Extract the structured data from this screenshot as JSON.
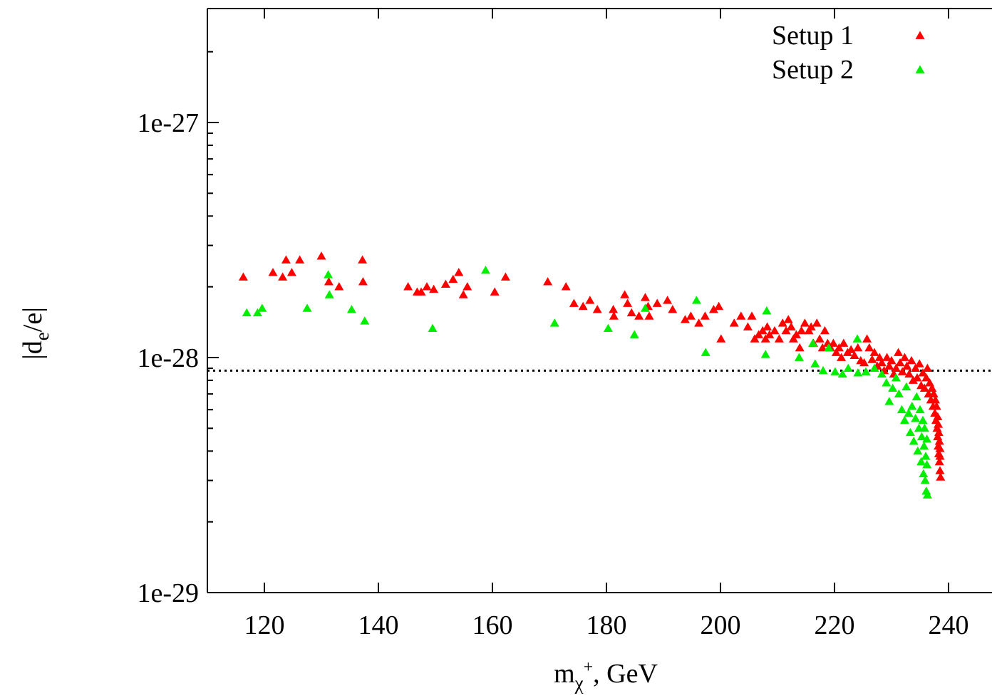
{
  "chart_data": {
    "type": "scatter",
    "title": "",
    "xlabel": {
      "main": "m",
      "sub": "χ",
      "sup": "+",
      "rest": ", GeV"
    },
    "ylabel": {
      "pre": "|d",
      "sub": "e",
      "post": "/e|"
    },
    "xlim": [
      110,
      240
    ],
    "ylim": [
      1e-29,
      2.8e-27
    ],
    "yscale": "log",
    "xticks": [
      120,
      140,
      160,
      180,
      200,
      220,
      240
    ],
    "xtick_labels": [
      "120",
      "140",
      "160",
      "180",
      "200",
      "220",
      "240"
    ],
    "yticks": [
      1e-29,
      1e-28,
      1e-27
    ],
    "ytick_labels": [
      "1e-29",
      "1e-28",
      "1e-27"
    ],
    "grid": false,
    "legend_position": "top-right",
    "reference_line": {
      "y": 8.8e-29,
      "style": "dotted"
    },
    "series": [
      {
        "name": "Setup 1",
        "color": "#ff0000",
        "marker": "triangle",
        "points": [
          [
            116.3,
            2.2e-28
          ],
          [
            121.5,
            2.3e-28
          ],
          [
            123.2,
            2.2e-28
          ],
          [
            123.8,
            2.6e-28
          ],
          [
            124.8,
            2.3e-28
          ],
          [
            126.2,
            2.6e-28
          ],
          [
            130.0,
            2.7e-28
          ],
          [
            131.3,
            2.1e-28
          ],
          [
            133.1,
            2e-28
          ],
          [
            137.2,
            2.6e-28
          ],
          [
            137.3,
            2.1e-28
          ],
          [
            145.2,
            2e-28
          ],
          [
            146.8,
            1.9e-28
          ],
          [
            147.5,
            1.9e-28
          ],
          [
            148.5,
            2e-28
          ],
          [
            149.7,
            1.95e-28
          ],
          [
            151.8,
            2.05e-28
          ],
          [
            153.1,
            2.15e-28
          ],
          [
            154.1,
            2.3e-28
          ],
          [
            154.9,
            1.85e-28
          ],
          [
            155.6,
            2e-28
          ],
          [
            160.4,
            1.9e-28
          ],
          [
            162.3,
            2.2e-28
          ],
          [
            169.7,
            2.1e-28
          ],
          [
            172.9,
            2e-28
          ],
          [
            174.3,
            1.7e-28
          ],
          [
            175.9,
            1.65e-28
          ],
          [
            177.1,
            1.75e-28
          ],
          [
            178.4,
            1.6e-28
          ],
          [
            181.2,
            1.6e-28
          ],
          [
            181.3,
            1.5e-28
          ],
          [
            183.2,
            1.85e-28
          ],
          [
            183.7,
            1.7e-28
          ],
          [
            184.4,
            1.55e-28
          ],
          [
            185.7,
            1.5e-28
          ],
          [
            186.8,
            1.8e-28
          ],
          [
            187.3,
            1.65e-28
          ],
          [
            187.5,
            1.5e-28
          ],
          [
            188.9,
            1.7e-28
          ],
          [
            190.7,
            1.75e-28
          ],
          [
            191.6,
            1.6e-28
          ],
          [
            193.8,
            1.45e-28
          ],
          [
            194.8,
            1.5e-28
          ],
          [
            196.2,
            1.4e-28
          ],
          [
            197.3,
            1.5e-28
          ],
          [
            198.8,
            1.6e-28
          ],
          [
            199.7,
            1.65e-28
          ],
          [
            200.1,
            1.2e-28
          ],
          [
            202.4,
            1.4e-28
          ],
          [
            203.6,
            1.5e-28
          ],
          [
            204.8,
            1.35e-28
          ],
          [
            205.5,
            1.5e-28
          ],
          [
            206.0,
            1.2e-28
          ],
          [
            206.7,
            1.25e-28
          ],
          [
            207.4,
            1.3e-28
          ],
          [
            207.9,
            1.2e-28
          ],
          [
            208.2,
            1.35e-28
          ],
          [
            208.6,
            1.25e-28
          ],
          [
            209.5,
            1.3e-28
          ],
          [
            210.3,
            1.2e-28
          ],
          [
            210.9,
            1.4e-28
          ],
          [
            211.5,
            1.3e-28
          ],
          [
            211.9,
            1.45e-28
          ],
          [
            212.4,
            1.35e-28
          ],
          [
            212.8,
            1.2e-28
          ],
          [
            213.3,
            1.25e-28
          ],
          [
            213.9,
            1.1e-28
          ],
          [
            214.2,
            1.3e-28
          ],
          [
            214.8,
            1.4e-28
          ],
          [
            215.5,
            1.3e-28
          ],
          [
            215.9,
            1.35e-28
          ],
          [
            216.3,
            1.15e-28
          ],
          [
            216.9,
            1.4e-28
          ],
          [
            217.4,
            1.2e-28
          ],
          [
            217.9,
            1.1e-28
          ],
          [
            218.3,
            1.3e-28
          ],
          [
            218.8,
            1.15e-28
          ],
          [
            219.3,
            1.1e-28
          ],
          [
            219.8,
            1.15e-28
          ],
          [
            220.3,
            1.05e-28
          ],
          [
            220.8,
            1.1e-28
          ],
          [
            221.2,
            1e-28
          ],
          [
            221.6,
            1.15e-28
          ],
          [
            222.3,
            1.05e-28
          ],
          [
            222.9,
            1.08e-28
          ],
          [
            223.5,
            1.02e-28
          ],
          [
            224.1,
            1.1e-28
          ],
          [
            224.6,
            9.7e-29
          ],
          [
            225.2,
            9.5e-29
          ],
          [
            225.7,
            1.2e-28
          ],
          [
            226.1,
            1.1e-28
          ],
          [
            226.6,
            9.8e-29
          ],
          [
            227.0,
            1.05e-28
          ],
          [
            227.5,
            9.2e-29
          ],
          [
            227.9,
            1e-28
          ],
          [
            228.3,
            9.5e-29
          ],
          [
            228.7,
            8.8e-29
          ],
          [
            229.2,
            1e-28
          ],
          [
            229.6,
            9.2e-29
          ],
          [
            230.0,
            9.7e-29
          ],
          [
            230.4,
            8.5e-29
          ],
          [
            230.8,
            9e-29
          ],
          [
            231.2,
            1.05e-28
          ],
          [
            231.5,
            9.5e-29
          ],
          [
            231.9,
            8.7e-29
          ],
          [
            232.3,
            1e-28
          ],
          [
            232.7,
            9.2e-29
          ],
          [
            233.1,
            8.5e-29
          ],
          [
            233.5,
            9.7e-29
          ],
          [
            233.8,
            8e-29
          ],
          [
            234.2,
            9e-29
          ],
          [
            234.5,
            8.2e-29
          ],
          [
            234.9,
            9.4e-29
          ],
          [
            235.2,
            7.6e-29
          ],
          [
            235.5,
            8.6e-29
          ],
          [
            235.8,
            7.4e-29
          ],
          [
            236.1,
            8.2e-29
          ],
          [
            236.3,
            9e-29
          ],
          [
            236.5,
            7e-29
          ],
          [
            236.7,
            7.8e-29
          ],
          [
            236.9,
            6.6e-29
          ],
          [
            237.1,
            7.4e-29
          ],
          [
            237.3,
            6.2e-29
          ],
          [
            237.4,
            7e-29
          ],
          [
            237.6,
            5.8e-29
          ],
          [
            237.7,
            6.6e-29
          ],
          [
            237.8,
            5.4e-29
          ],
          [
            237.9,
            6.2e-29
          ],
          [
            238.0,
            5e-29
          ],
          [
            238.1,
            5.6e-29
          ],
          [
            238.1,
            4.6e-29
          ],
          [
            238.2,
            5.2e-29
          ],
          [
            238.2,
            4.2e-29
          ],
          [
            238.3,
            4.8e-29
          ],
          [
            238.3,
            3.9e-29
          ],
          [
            238.4,
            4.4e-29
          ],
          [
            238.4,
            3.6e-29
          ],
          [
            238.5,
            4.1e-29
          ],
          [
            238.5,
            3.3e-29
          ],
          [
            238.5,
            3.8e-29
          ],
          [
            238.6,
            3.1e-29
          ]
        ]
      },
      {
        "name": "Setup 2",
        "color": "#00ee00",
        "marker": "triangle",
        "points": [
          [
            116.9,
            1.55e-28
          ],
          [
            118.8,
            1.55e-28
          ],
          [
            119.6,
            1.62e-28
          ],
          [
            127.5,
            1.62e-28
          ],
          [
            131.2,
            2.25e-28
          ],
          [
            131.4,
            1.85e-28
          ],
          [
            135.3,
            1.6e-28
          ],
          [
            137.6,
            1.43e-28
          ],
          [
            149.5,
            1.33e-28
          ],
          [
            158.8,
            2.35e-28
          ],
          [
            170.9,
            1.4e-28
          ],
          [
            180.3,
            1.33e-28
          ],
          [
            184.9,
            1.25e-28
          ],
          [
            186.8,
            1.62e-28
          ],
          [
            195.8,
            1.75e-28
          ],
          [
            197.4,
            1.05e-28
          ],
          [
            207.9,
            1.03e-28
          ],
          [
            208.1,
            1.58e-28
          ],
          [
            213.8,
            1e-28
          ],
          [
            216.2,
            1.15e-28
          ],
          [
            216.6,
            9.4e-29
          ],
          [
            218.0,
            8.8e-29
          ],
          [
            219.0,
            1.1e-28
          ],
          [
            220.1,
            8.7e-29
          ],
          [
            221.4,
            8.5e-29
          ],
          [
            222.4,
            9e-29
          ],
          [
            224.0,
            1.2e-28
          ],
          [
            224.1,
            8.6e-29
          ],
          [
            225.5,
            8.7e-29
          ],
          [
            227.0,
            9e-29
          ],
          [
            228.3,
            8.5e-29
          ],
          [
            229.1,
            7.8e-29
          ],
          [
            229.6,
            6.5e-29
          ],
          [
            230.2,
            7.4e-29
          ],
          [
            230.8,
            8.2e-29
          ],
          [
            231.3,
            7e-29
          ],
          [
            231.8,
            6e-29
          ],
          [
            232.3,
            5.4e-29
          ],
          [
            232.6,
            7.5e-29
          ],
          [
            233.0,
            5.8e-29
          ],
          [
            233.3,
            4.8e-29
          ],
          [
            233.6,
            6.2e-29
          ],
          [
            233.9,
            4.4e-29
          ],
          [
            234.2,
            5.5e-29
          ],
          [
            234.4,
            6.8e-29
          ],
          [
            234.6,
            4e-29
          ],
          [
            234.8,
            5e-29
          ],
          [
            235.0,
            6e-29
          ],
          [
            235.2,
            3.6e-29
          ],
          [
            235.3,
            4.6e-29
          ],
          [
            235.5,
            5.4e-29
          ],
          [
            235.6,
            3.2e-29
          ],
          [
            235.7,
            4.2e-29
          ],
          [
            235.8,
            5e-29
          ],
          [
            235.9,
            3e-29
          ],
          [
            236.0,
            3.8e-29
          ],
          [
            236.1,
            2.7e-29
          ],
          [
            236.2,
            4.5e-29
          ],
          [
            236.2,
            3.5e-29
          ],
          [
            236.3,
            2.6e-29
          ]
        ]
      }
    ]
  }
}
